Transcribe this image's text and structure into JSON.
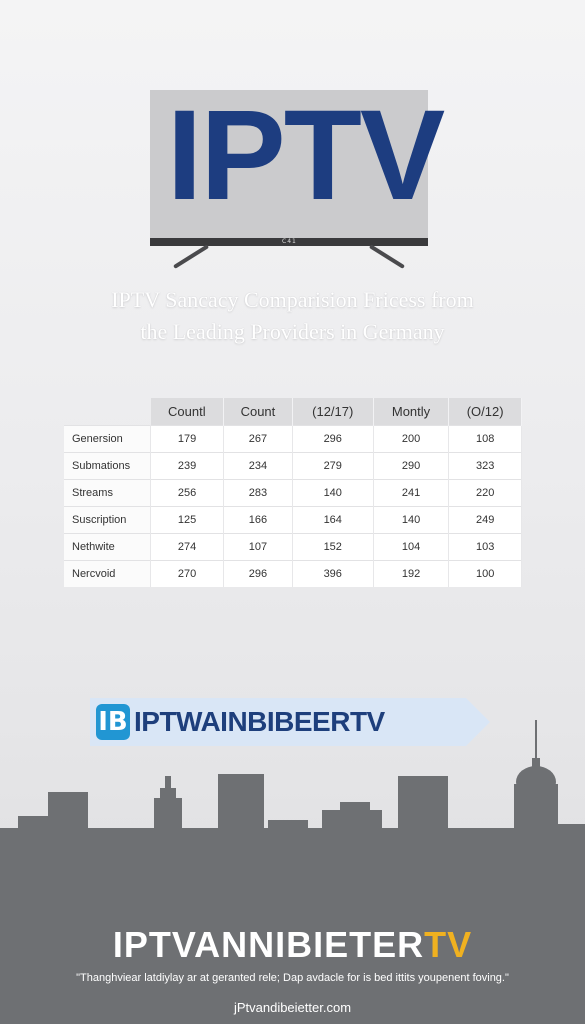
{
  "hero": {
    "logo_text": "IPTV",
    "tv_brand": "C41"
  },
  "headline": {
    "line1": "IPTV Sancacy Comparision Fricess from",
    "line2": "the Leading Providers in Germany"
  },
  "table": {
    "headers": [
      "Countl",
      "Count",
      "(12/17)",
      "Montly",
      "(O/12)"
    ],
    "rows": [
      {
        "label": "Genersion",
        "values": [
          "179",
          "267",
          "296",
          "200",
          "108"
        ]
      },
      {
        "label": "Submations",
        "values": [
          "239",
          "234",
          "279",
          "290",
          "323"
        ]
      },
      {
        "label": "Streams",
        "values": [
          "256",
          "283",
          "140",
          "241",
          "220"
        ]
      },
      {
        "label": "Suscription",
        "values": [
          "125",
          "166",
          "164",
          "140",
          "249"
        ]
      },
      {
        "label": "Nethwite",
        "values": [
          "274",
          "107",
          "152",
          "104",
          "103"
        ]
      },
      {
        "label": "Nercvoid",
        "values": [
          "270",
          "296",
          "396",
          "192",
          "100"
        ]
      }
    ]
  },
  "banner": {
    "icon_text": "IB",
    "text": "IPTWAINBIBEERTV"
  },
  "footer": {
    "brand_main": "IPTVANNIBIETER",
    "brand_accent": "TV",
    "tagline": "\"Thanghviear latdiylay ar at geranted rele; Dap avdacle for is bed ittits youpenent foving.\"",
    "url": "jPtvandibeietter.com"
  },
  "colors": {
    "logo_blue": "#1d3d80",
    "banner_icon": "#2196d3",
    "accent_gold": "#f0b120",
    "skyline": "#6e7073"
  }
}
